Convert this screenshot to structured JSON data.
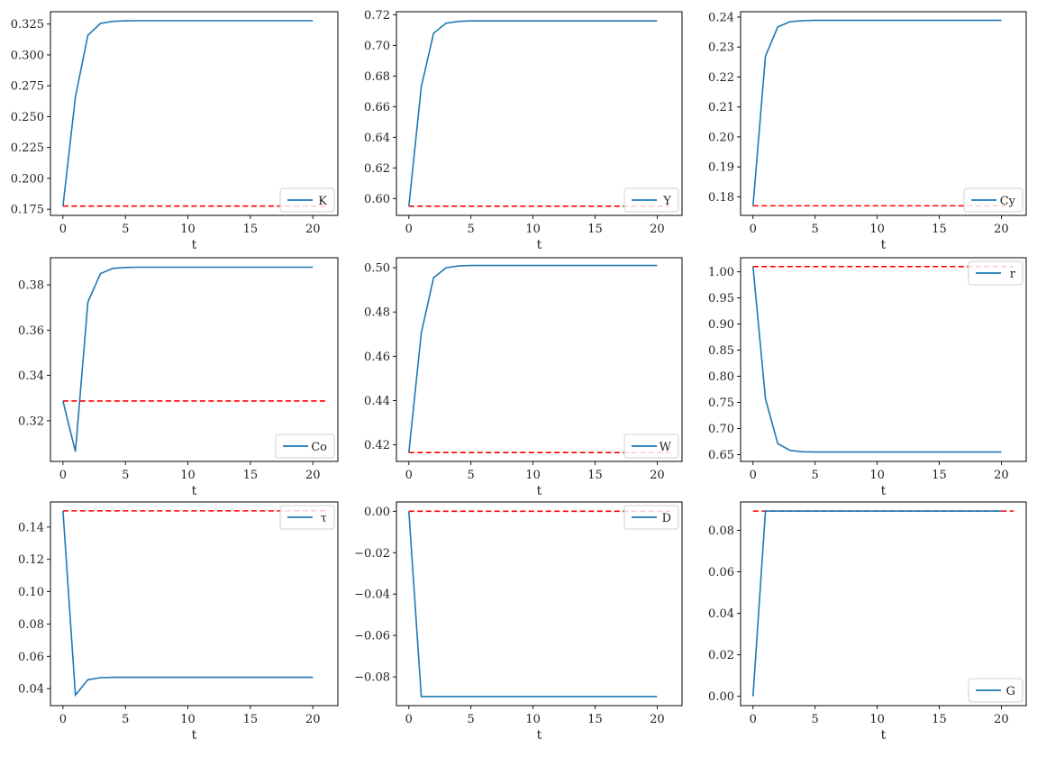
{
  "figure": {
    "rows": 3,
    "cols": 3,
    "xlabel": "t"
  },
  "colors": {
    "series": "#1f77b4",
    "steady_state": "#ff0000"
  },
  "chart_data": [
    {
      "type": "line",
      "legend": "K",
      "xlabel": "t",
      "xlim": [
        -1,
        22
      ],
      "ylim": [
        0.17,
        0.335
      ],
      "xticks": [
        0,
        5,
        10,
        15,
        20
      ],
      "yticks": [
        0.175,
        0.2,
        0.225,
        0.25,
        0.275,
        0.3,
        0.325
      ],
      "ytick_labels": [
        "0.175",
        "0.200",
        "0.225",
        "0.250",
        "0.275",
        "0.300",
        "0.325"
      ],
      "legend_loc": "lower right",
      "x": [
        0,
        1,
        2,
        3,
        4,
        5,
        6,
        7,
        8,
        9,
        10,
        11,
        12,
        13,
        14,
        15,
        16,
        17,
        18,
        19,
        20
      ],
      "values": [
        0.1775,
        0.266,
        0.316,
        0.3255,
        0.3272,
        0.3276,
        0.3277,
        0.3277,
        0.3277,
        0.3277,
        0.3277,
        0.3277,
        0.3277,
        0.3277,
        0.3277,
        0.3277,
        0.3277,
        0.3277,
        0.3277,
        0.3277,
        0.3277
      ],
      "steady_state": 0.1775,
      "steady_state_x": [
        0,
        21
      ]
    },
    {
      "type": "line",
      "legend": "Y",
      "xlabel": "t",
      "xlim": [
        -1,
        22
      ],
      "ylim": [
        0.589,
        0.722
      ],
      "xticks": [
        0,
        5,
        10,
        15,
        20
      ],
      "yticks": [
        0.6,
        0.62,
        0.64,
        0.66,
        0.68,
        0.7,
        0.72
      ],
      "ytick_labels": [
        "0.60",
        "0.62",
        "0.64",
        "0.66",
        "0.68",
        "0.70",
        "0.72"
      ],
      "legend_loc": "lower right",
      "x": [
        0,
        1,
        2,
        3,
        4,
        5,
        6,
        7,
        8,
        9,
        10,
        11,
        12,
        13,
        14,
        15,
        16,
        17,
        18,
        19,
        20
      ],
      "values": [
        0.595,
        0.673,
        0.708,
        0.7145,
        0.7157,
        0.716,
        0.716,
        0.716,
        0.716,
        0.716,
        0.716,
        0.716,
        0.716,
        0.716,
        0.716,
        0.716,
        0.716,
        0.716,
        0.716,
        0.716,
        0.716
      ],
      "steady_state": 0.595,
      "steady_state_x": [
        0,
        21
      ]
    },
    {
      "type": "line",
      "legend": "Cy",
      "xlabel": "t",
      "xlim": [
        -1,
        22
      ],
      "ylim": [
        0.1738,
        0.2418
      ],
      "xticks": [
        0,
        5,
        10,
        15,
        20
      ],
      "yticks": [
        0.18,
        0.19,
        0.2,
        0.21,
        0.22,
        0.23,
        0.24
      ],
      "ytick_labels": [
        "0.18",
        "0.19",
        "0.20",
        "0.21",
        "0.22",
        "0.23",
        "0.24"
      ],
      "legend_loc": "lower right",
      "x": [
        0,
        1,
        2,
        3,
        4,
        5,
        6,
        7,
        8,
        9,
        10,
        11,
        12,
        13,
        14,
        15,
        16,
        17,
        18,
        19,
        20
      ],
      "values": [
        0.177,
        0.227,
        0.2367,
        0.2385,
        0.2388,
        0.2389,
        0.2389,
        0.2389,
        0.2389,
        0.2389,
        0.2389,
        0.2389,
        0.2389,
        0.2389,
        0.2389,
        0.2389,
        0.2389,
        0.2389,
        0.2389,
        0.2389,
        0.2389
      ],
      "steady_state": 0.177,
      "steady_state_x": [
        0,
        21
      ]
    },
    {
      "type": "line",
      "legend": "Co",
      "xlabel": "t",
      "xlim": [
        -1,
        22
      ],
      "ylim": [
        0.302,
        0.392
      ],
      "xticks": [
        0,
        5,
        10,
        15,
        20
      ],
      "yticks": [
        0.32,
        0.34,
        0.36,
        0.38
      ],
      "ytick_labels": [
        "0.32",
        "0.34",
        "0.36",
        "0.38"
      ],
      "legend_loc": "lower right",
      "x": [
        0,
        1,
        2,
        3,
        4,
        5,
        6,
        7,
        8,
        9,
        10,
        11,
        12,
        13,
        14,
        15,
        16,
        17,
        18,
        19,
        20
      ],
      "values": [
        0.3287,
        0.3063,
        0.3725,
        0.385,
        0.3873,
        0.3877,
        0.3878,
        0.3878,
        0.3878,
        0.3878,
        0.3878,
        0.3878,
        0.3878,
        0.3878,
        0.3878,
        0.3878,
        0.3878,
        0.3878,
        0.3878,
        0.3878,
        0.3878
      ],
      "steady_state": 0.3287,
      "steady_state_x": [
        0,
        21
      ]
    },
    {
      "type": "line",
      "legend": "W",
      "xlabel": "t",
      "xlim": [
        -1,
        22
      ],
      "ylim": [
        0.4125,
        0.5045
      ],
      "xticks": [
        0,
        5,
        10,
        15,
        20
      ],
      "yticks": [
        0.42,
        0.44,
        0.46,
        0.48,
        0.5
      ],
      "ytick_labels": [
        "0.42",
        "0.44",
        "0.46",
        "0.48",
        "0.50"
      ],
      "legend_loc": "lower right",
      "x": [
        0,
        1,
        2,
        3,
        4,
        5,
        6,
        7,
        8,
        9,
        10,
        11,
        12,
        13,
        14,
        15,
        16,
        17,
        18,
        19,
        20
      ],
      "values": [
        0.4165,
        0.4705,
        0.4955,
        0.5,
        0.5008,
        0.501,
        0.501,
        0.501,
        0.501,
        0.501,
        0.501,
        0.501,
        0.501,
        0.501,
        0.501,
        0.501,
        0.501,
        0.501,
        0.501,
        0.501,
        0.501
      ],
      "steady_state": 0.4165,
      "steady_state_x": [
        0,
        21
      ]
    },
    {
      "type": "line",
      "legend": "r",
      "xlabel": "t",
      "xlim": [
        -1,
        22
      ],
      "ylim": [
        0.637,
        1.027
      ],
      "xticks": [
        0,
        5,
        10,
        15,
        20
      ],
      "yticks": [
        0.65,
        0.7,
        0.75,
        0.8,
        0.85,
        0.9,
        0.95,
        1.0
      ],
      "ytick_labels": [
        "0.65",
        "0.70",
        "0.75",
        "0.80",
        "0.85",
        "0.90",
        "0.95",
        "1.00"
      ],
      "legend_loc": "upper right",
      "x": [
        0,
        1,
        2,
        3,
        4,
        5,
        6,
        7,
        8,
        9,
        10,
        11,
        12,
        13,
        14,
        15,
        16,
        17,
        18,
        19,
        20
      ],
      "values": [
        1.01,
        0.757,
        0.671,
        0.658,
        0.6555,
        0.655,
        0.655,
        0.655,
        0.655,
        0.655,
        0.655,
        0.655,
        0.655,
        0.655,
        0.655,
        0.655,
        0.655,
        0.655,
        0.655,
        0.655,
        0.655
      ],
      "steady_state": 1.01,
      "steady_state_x": [
        0,
        21
      ]
    },
    {
      "type": "line",
      "legend": "τ",
      "xlabel": "t",
      "xlim": [
        -1,
        22
      ],
      "ylim": [
        0.0295,
        0.1555
      ],
      "xticks": [
        0,
        5,
        10,
        15,
        20
      ],
      "yticks": [
        0.04,
        0.06,
        0.08,
        0.1,
        0.12,
        0.14
      ],
      "ytick_labels": [
        "0.04",
        "0.06",
        "0.08",
        "0.10",
        "0.12",
        "0.14"
      ],
      "legend_loc": "upper right",
      "x": [
        0,
        1,
        2,
        3,
        4,
        5,
        6,
        7,
        8,
        9,
        10,
        11,
        12,
        13,
        14,
        15,
        16,
        17,
        18,
        19,
        20
      ],
      "values": [
        0.15,
        0.036,
        0.0455,
        0.0468,
        0.047,
        0.047,
        0.047,
        0.047,
        0.047,
        0.047,
        0.047,
        0.047,
        0.047,
        0.047,
        0.047,
        0.047,
        0.047,
        0.047,
        0.047,
        0.047,
        0.047
      ],
      "steady_state": 0.15,
      "steady_state_x": [
        0,
        21
      ]
    },
    {
      "type": "line",
      "legend": "D",
      "xlabel": "t",
      "xlim": [
        -1,
        22
      ],
      "ylim": [
        -0.0939,
        0.0045
      ],
      "xticks": [
        0,
        5,
        10,
        15,
        20
      ],
      "yticks": [
        -0.08,
        -0.06,
        -0.04,
        -0.02,
        0.0
      ],
      "ytick_labels": [
        "−0.08",
        "−0.06",
        "−0.04",
        "−0.02",
        "0.00"
      ],
      "legend_loc": "upper right",
      "x": [
        0,
        1,
        2,
        3,
        4,
        5,
        6,
        7,
        8,
        9,
        10,
        11,
        12,
        13,
        14,
        15,
        16,
        17,
        18,
        19,
        20
      ],
      "values": [
        0.0,
        -0.0895,
        -0.0895,
        -0.0895,
        -0.0895,
        -0.0895,
        -0.0895,
        -0.0895,
        -0.0895,
        -0.0895,
        -0.0895,
        -0.0895,
        -0.0895,
        -0.0895,
        -0.0895,
        -0.0895,
        -0.0895,
        -0.0895,
        -0.0895,
        -0.0895,
        -0.0895
      ],
      "steady_state": 0.0,
      "steady_state_x": [
        0,
        21
      ]
    },
    {
      "type": "line",
      "legend": "G",
      "xlabel": "t",
      "xlim": [
        -1,
        22
      ],
      "ylim": [
        -0.0045,
        0.0937
      ],
      "xticks": [
        0,
        5,
        10,
        15,
        20
      ],
      "yticks": [
        0.0,
        0.02,
        0.04,
        0.06,
        0.08
      ],
      "ytick_labels": [
        "0.00",
        "0.02",
        "0.04",
        "0.06",
        "0.08"
      ],
      "legend_loc": "lower right",
      "x": [
        0,
        1,
        2,
        3,
        4,
        5,
        6,
        7,
        8,
        9,
        10,
        11,
        12,
        13,
        14,
        15,
        16,
        17,
        18,
        19,
        20
      ],
      "values": [
        0.0,
        0.0893,
        0.0893,
        0.0893,
        0.0893,
        0.0893,
        0.0893,
        0.0893,
        0.0893,
        0.0893,
        0.0893,
        0.0893,
        0.0893,
        0.0893,
        0.0893,
        0.0893,
        0.0893,
        0.0893,
        0.0893,
        0.0893,
        0.0893
      ],
      "steady_state": 0.0893,
      "steady_state_x": [
        0,
        21
      ]
    }
  ]
}
